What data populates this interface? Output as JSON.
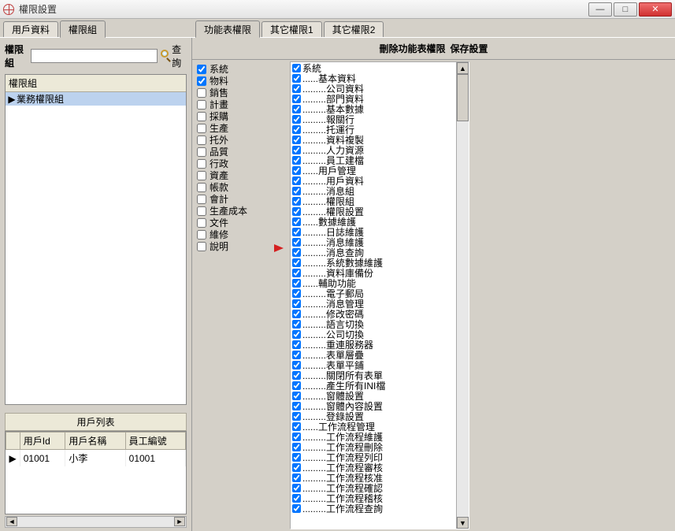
{
  "window": {
    "title": "權限設置"
  },
  "left_tabs": [
    "用戶資料",
    "權限組"
  ],
  "left_tab_active": 1,
  "right_tabs": [
    "功能表權限",
    "其它權限1",
    "其它權限2"
  ],
  "right_tab_active": 0,
  "search": {
    "label": "權限組",
    "button": "查詢",
    "value": ""
  },
  "group_list": {
    "header": "權限組",
    "rows": [
      {
        "label": "業務權限組",
        "selected": true,
        "current": true
      }
    ]
  },
  "user_list": {
    "title": "用戶列表",
    "columns": [
      "用戶Id",
      "用戶名稱",
      "員工編號"
    ],
    "rows": [
      {
        "current": true,
        "cells": [
          "01001",
          "小李",
          "01001"
        ]
      }
    ]
  },
  "right_header": {
    "left": "刪除功能表權限",
    "right": "保存設置"
  },
  "categories": [
    {
      "label": "系統",
      "checked": true
    },
    {
      "label": "物料",
      "checked": true
    },
    {
      "label": "銷售",
      "checked": false
    },
    {
      "label": "計畫",
      "checked": false
    },
    {
      "label": "採購",
      "checked": false
    },
    {
      "label": "生產",
      "checked": false
    },
    {
      "label": "托外",
      "checked": false
    },
    {
      "label": "品質",
      "checked": false
    },
    {
      "label": "行政",
      "checked": false
    },
    {
      "label": "資產",
      "checked": false
    },
    {
      "label": "帳款",
      "checked": false
    },
    {
      "label": "會計",
      "checked": false
    },
    {
      "label": "生產成本",
      "checked": false
    },
    {
      "label": "文件",
      "checked": false
    },
    {
      "label": "維修",
      "checked": false
    },
    {
      "label": "說明",
      "checked": false
    }
  ],
  "permissions": [
    {
      "label": "系統",
      "depth": 0
    },
    {
      "label": "基本資料",
      "depth": 1
    },
    {
      "label": "公司資料",
      "depth": 2
    },
    {
      "label": "部門資料",
      "depth": 2
    },
    {
      "label": "基本數據",
      "depth": 2
    },
    {
      "label": "報關行",
      "depth": 2
    },
    {
      "label": "托運行",
      "depth": 2
    },
    {
      "label": "資料複製",
      "depth": 2
    },
    {
      "label": "人力資源",
      "depth": 2
    },
    {
      "label": "員工建檔",
      "depth": 2
    },
    {
      "label": "用戶管理",
      "depth": 1
    },
    {
      "label": "用戶資料",
      "depth": 2
    },
    {
      "label": "消息組",
      "depth": 2
    },
    {
      "label": "權限組",
      "depth": 2
    },
    {
      "label": "權限設置",
      "depth": 2
    },
    {
      "label": "數據維護",
      "depth": 1
    },
    {
      "label": "日誌維護",
      "depth": 2
    },
    {
      "label": "消息維護",
      "depth": 2
    },
    {
      "label": "消息查詢",
      "depth": 2
    },
    {
      "label": "系統數據維護",
      "depth": 2
    },
    {
      "label": "資料庫備份",
      "depth": 2
    },
    {
      "label": "輔助功能",
      "depth": 1
    },
    {
      "label": "電子郵局",
      "depth": 2
    },
    {
      "label": "消息管理",
      "depth": 2
    },
    {
      "label": "修改密碼",
      "depth": 2
    },
    {
      "label": "語言切換",
      "depth": 2
    },
    {
      "label": "公司切換",
      "depth": 2
    },
    {
      "label": "重連服務器",
      "depth": 2
    },
    {
      "label": "表單層疊",
      "depth": 2
    },
    {
      "label": "表單平鋪",
      "depth": 2
    },
    {
      "label": "關閉所有表單",
      "depth": 2
    },
    {
      "label": "產生所有INI檔",
      "depth": 2
    },
    {
      "label": "窗體設置",
      "depth": 2
    },
    {
      "label": "窗體內容設置",
      "depth": 2
    },
    {
      "label": "登錄設置",
      "depth": 2
    },
    {
      "label": "工作流程管理",
      "depth": 1
    },
    {
      "label": "工作流程維護",
      "depth": 2
    },
    {
      "label": "工作流程刪除",
      "depth": 2
    },
    {
      "label": "工作流程列印",
      "depth": 2
    },
    {
      "label": "工作流程審核",
      "depth": 2
    },
    {
      "label": "工作流程核准",
      "depth": 2
    },
    {
      "label": "工作流程確認",
      "depth": 2
    },
    {
      "label": "工作流程稽核",
      "depth": 2
    },
    {
      "label": "工作流程查詢",
      "depth": 2
    }
  ]
}
